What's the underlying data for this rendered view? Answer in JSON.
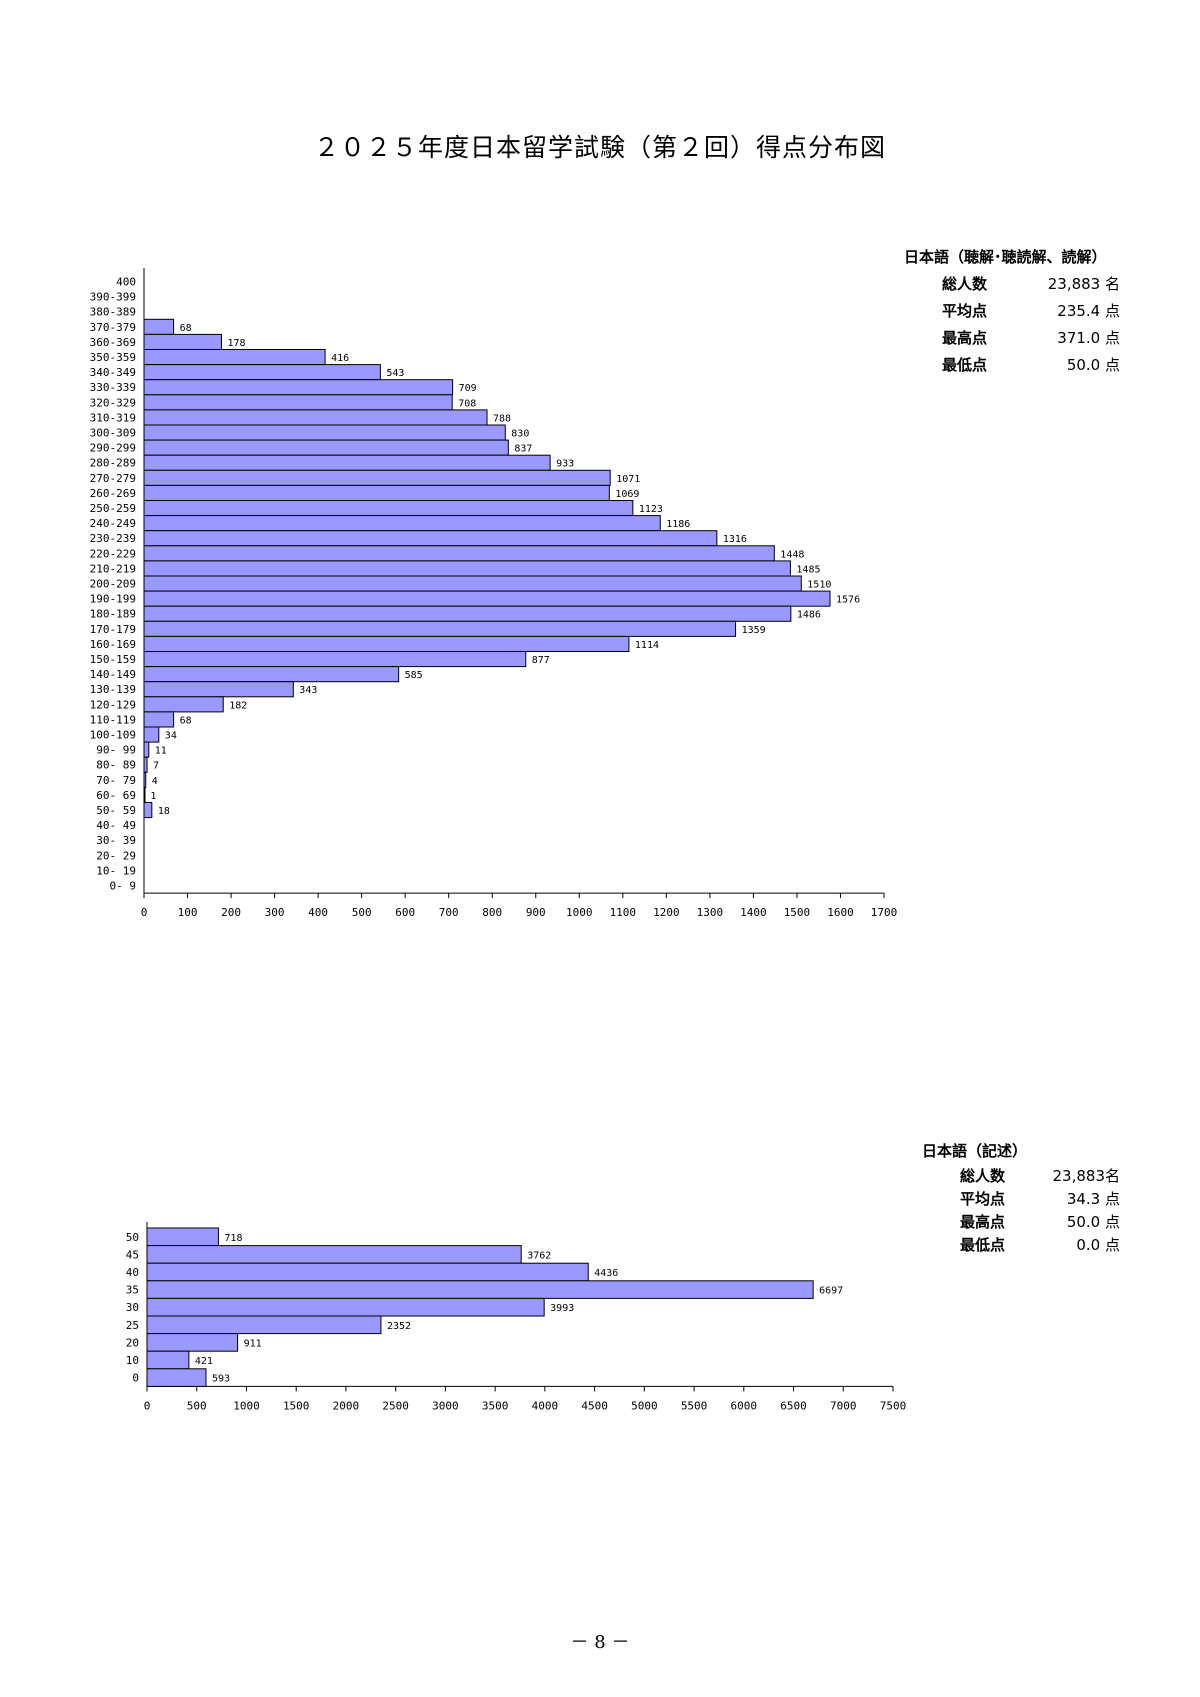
{
  "page": {
    "title": "２０２５年度日本留学試験（第２回）得点分布図",
    "page_number": "－ 8 －"
  },
  "stats": [
    {
      "title": "日本語（聴解･聴読解、読解）",
      "rows": [
        {
          "label": "総人数",
          "value": "23,883 名"
        },
        {
          "label": "平均点",
          "value": "235.4 点"
        },
        {
          "label": "最高点",
          "value": "371.0 点"
        },
        {
          "label": "最低点",
          "value": "50.0 点"
        }
      ]
    },
    {
      "title": "日本語（記述）",
      "rows": [
        {
          "label": "総人数",
          "value": "23,883名"
        },
        {
          "label": "平均点",
          "value": "34.3 点"
        },
        {
          "label": "最高点",
          "value": "50.0 点"
        },
        {
          "label": "最低点",
          "value": "0.0 点"
        }
      ]
    }
  ],
  "chart_data": [
    {
      "type": "bar",
      "orientation": "horizontal",
      "bar_color": "#9999ff",
      "categories": [
        "400",
        "390-399",
        "380-389",
        "370-379",
        "360-369",
        "350-359",
        "340-349",
        "330-339",
        "320-329",
        "310-319",
        "300-309",
        "290-299",
        "280-289",
        "270-279",
        "260-269",
        "250-259",
        "240-249",
        "230-239",
        "220-229",
        "210-219",
        "200-209",
        "190-199",
        "180-189",
        "170-179",
        "160-169",
        "150-159",
        "140-149",
        "130-139",
        "120-129",
        "110-119",
        "100-109",
        "90- 99",
        "80- 89",
        "70- 79",
        "60- 69",
        "50- 59",
        "40- 49",
        "30- 39",
        "20- 29",
        "10- 19",
        "0- 9"
      ],
      "values": [
        null,
        null,
        null,
        68,
        178,
        416,
        543,
        709,
        708,
        788,
        830,
        837,
        933,
        1071,
        1069,
        1123,
        1186,
        1316,
        1448,
        1485,
        1510,
        1576,
        1486,
        1359,
        1114,
        877,
        585,
        343,
        182,
        68,
        34,
        11,
        7,
        4,
        1,
        18,
        null,
        null,
        null,
        null,
        null
      ],
      "xlim": [
        0,
        1700
      ],
      "xticks": [
        0,
        100,
        200,
        300,
        400,
        500,
        600,
        700,
        800,
        900,
        1000,
        1100,
        1200,
        1300,
        1400,
        1500,
        1600,
        1700
      ]
    },
    {
      "type": "bar",
      "orientation": "horizontal",
      "bar_color": "#9999ff",
      "categories": [
        "50",
        "45",
        "40",
        "35",
        "30",
        "25",
        "20",
        "10",
        "0"
      ],
      "values": [
        718,
        3762,
        4436,
        6697,
        3993,
        2352,
        911,
        421,
        593
      ],
      "xlim": [
        0,
        7500
      ],
      "xticks": [
        0,
        500,
        1000,
        1500,
        2000,
        2500,
        3000,
        3500,
        4000,
        4500,
        5000,
        5500,
        6000,
        6500,
        7000,
        7500
      ]
    }
  ]
}
